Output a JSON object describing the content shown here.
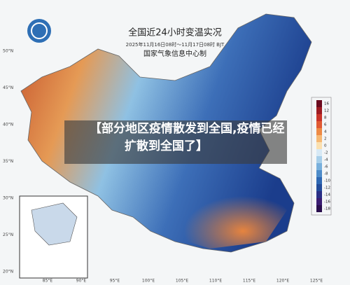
{
  "map": {
    "title": "全国近24小时变温实况",
    "subtitle": "2025年11月16日08时～11月17日08时 BJT",
    "credit": "国家气象信息中心制",
    "caption": [
      "【部分地区疫情散发到全国,疫情已经",
      "扩散到全国了】"
    ],
    "lat_labels": [
      "50°N",
      "45°N",
      "40°N",
      "35°N",
      "30°N",
      "25°N",
      "20°N"
    ],
    "lon_labels": [
      "85°E",
      "90°E",
      "95°E",
      "100°E",
      "105°E",
      "110°E",
      "115°E",
      "120°E",
      "125°E"
    ],
    "legend": {
      "ticks": [
        "16",
        "12",
        "8",
        "6",
        "4",
        "2",
        "0",
        "-2",
        "-4",
        "-6",
        "-8",
        "-10",
        "-12",
        "-14",
        "-16",
        "-18"
      ]
    }
  }
}
